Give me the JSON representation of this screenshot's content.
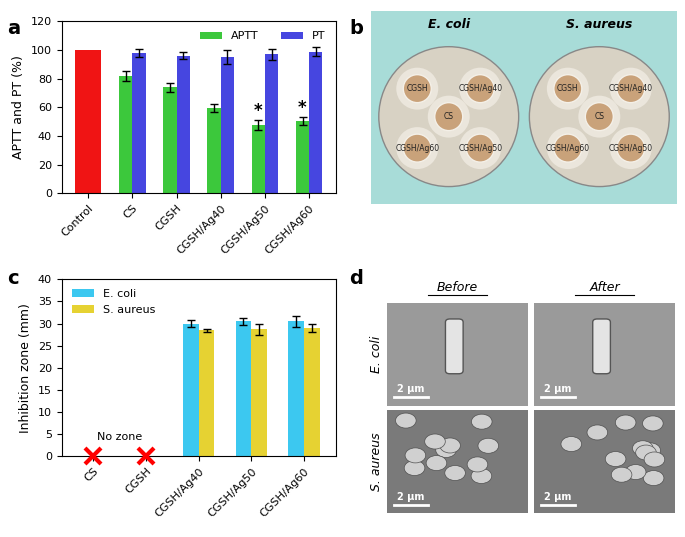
{
  "chart_data": [
    {
      "type": "bar",
      "title": "a",
      "categories": [
        "Control",
        "CS",
        "CGSH",
        "CGSH/Ag40",
        "CGSH/Ag50",
        "CGSH/Ag60"
      ],
      "series": [
        {
          "name": "APTT",
          "color": "#3cc83c",
          "colors": [
            "#f01414",
            "#3cc83c",
            "#3cc83c",
            "#3cc83c",
            "#3cc83c",
            "#3cc83c"
          ],
          "values": [
            100,
            82,
            74,
            59.5,
            48,
            50.5
          ],
          "errors": [
            null,
            3.5,
            3,
            3,
            3.5,
            3
          ]
        },
        {
          "name": "PT",
          "color": "#4646e0",
          "values": [
            null,
            98,
            96,
            95,
            97,
            99
          ],
          "errors": [
            null,
            3,
            2.5,
            5,
            4,
            3
          ]
        }
      ],
      "ylabel": "APTT and PT (%)",
      "ylim": [
        0,
        120
      ],
      "yticks": [
        0,
        20,
        40,
        60,
        80,
        100,
        120
      ],
      "legend": "upper right",
      "annotations": [
        {
          "text": "*",
          "category": "CGSH/Ag50",
          "series": "APTT"
        },
        {
          "text": "*",
          "category": "CGSH/Ag60",
          "series": "APTT"
        }
      ]
    },
    {
      "type": "bar",
      "title": "c",
      "categories": [
        "CS",
        "CGSH",
        "CGSH/Ag40",
        "CGSH/Ag50",
        "CGSH/Ag60"
      ],
      "series": [
        {
          "name": "E. coli",
          "color": "#3cc8f0",
          "values": [
            null,
            null,
            30,
            30.5,
            30.5
          ],
          "errors": [
            null,
            null,
            0.8,
            0.8,
            1.2
          ]
        },
        {
          "name": "S. aureus",
          "color": "#e6d232",
          "values": [
            null,
            null,
            28.5,
            28.7,
            29
          ],
          "errors": [
            null,
            null,
            0.3,
            1.2,
            0.9
          ]
        }
      ],
      "ylabel": "Inhibition zone (mm)",
      "ylim": [
        0,
        40
      ],
      "yticks": [
        0,
        5,
        10,
        15,
        20,
        25,
        30,
        35,
        40
      ],
      "legend": "upper left",
      "annotations": [
        {
          "text": "No zone"
        }
      ]
    }
  ],
  "photo_panels": [
    {
      "title": "b",
      "columns": [
        "E. coli",
        "S. aureus"
      ],
      "dish_labels": [
        "CGSH",
        "CGSH/Ag40",
        "CS",
        "CGSH/Ag60",
        "CGSH/Ag50"
      ]
    },
    {
      "title": "d",
      "columns": [
        "Before",
        "After"
      ],
      "rows": [
        "E. coli",
        "S. aureus"
      ],
      "scale_bar": "2 μm"
    }
  ]
}
